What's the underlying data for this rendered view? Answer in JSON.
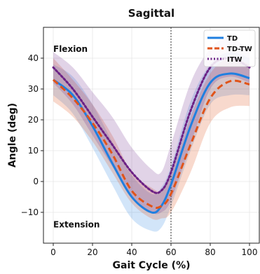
{
  "chart_data": {
    "type": "line",
    "title": "Sagittal",
    "xlabel": "Gait Cycle (%)",
    "ylabel": "Angle (deg)",
    "xlim": [
      -5,
      105
    ],
    "ylim": [
      -20,
      50
    ],
    "xticks": [
      0,
      20,
      40,
      60,
      80,
      100
    ],
    "yticks": [
      -10,
      0,
      10,
      20,
      30,
      40
    ],
    "grid": true,
    "legend_position": "top-right",
    "annotations": [
      {
        "text": "Flexion",
        "x": 0,
        "y": 43
      },
      {
        "text": "Extension",
        "x": 0,
        "y": -14
      }
    ],
    "vline": {
      "x": 60,
      "style": "dotted"
    },
    "x": [
      0,
      10,
      20,
      30,
      40,
      50,
      55,
      60,
      70,
      80,
      90,
      100
    ],
    "series": [
      {
        "name": "TD",
        "color": "#1f7fe0",
        "style": "solid",
        "values": [
          33,
          28,
          18,
          6,
          -5,
          -10,
          -8,
          -1,
          18,
          32,
          35,
          33.5
        ],
        "band_lower": [
          28,
          22,
          11,
          -1,
          -12,
          -16,
          -15,
          -8,
          10,
          25,
          28,
          28
        ],
        "band_upper": [
          38,
          34,
          25,
          13,
          2,
          -4,
          -2,
          5,
          26,
          38,
          42,
          40
        ]
      },
      {
        "name": "TD-TW",
        "color": "#e0541a",
        "style": "dashed",
        "values": [
          33,
          27,
          19,
          9,
          -3,
          -8,
          -8,
          -4,
          12,
          27,
          32.5,
          31.5
        ],
        "band_lower": [
          26,
          21,
          13,
          3,
          -7,
          -12,
          -12,
          -10,
          3,
          19,
          24,
          24.5
        ],
        "band_upper": [
          40,
          33,
          25,
          15,
          3,
          -2,
          -3,
          2,
          21,
          35,
          40,
          38
        ]
      },
      {
        "name": "ITW",
        "color": "#6b2185",
        "style": "dotted",
        "values": [
          37,
          30,
          21,
          12,
          3,
          -3,
          -3,
          3,
          23,
          37,
          40,
          37
        ],
        "band_lower": [
          32,
          25,
          15,
          5,
          -5,
          -10,
          -10,
          -6,
          12,
          30,
          34,
          32
        ],
        "band_upper": [
          42,
          37,
          29,
          21,
          11,
          4,
          3,
          12,
          32,
          43,
          47,
          42
        ]
      }
    ]
  }
}
